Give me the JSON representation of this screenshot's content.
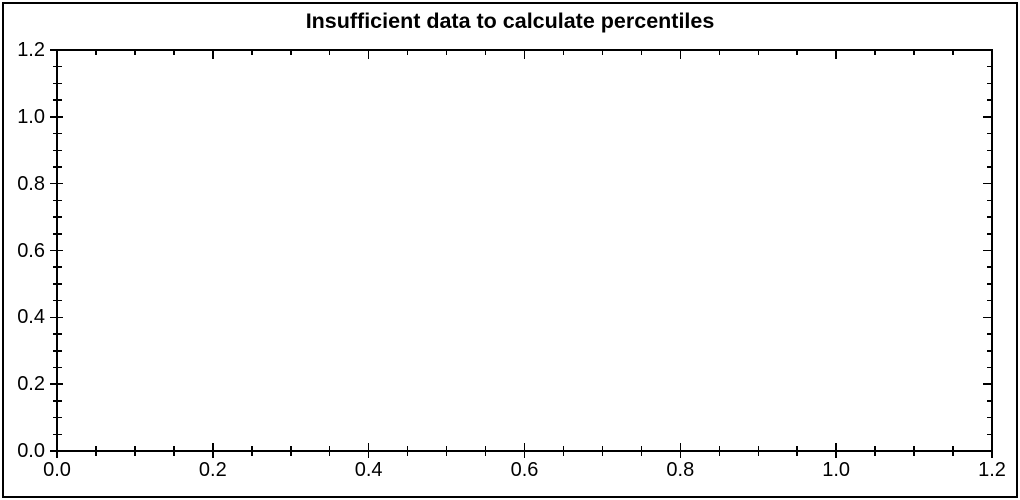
{
  "chart_data": {
    "type": "scatter",
    "title": "Insufficient data to calculate percentiles",
    "series": [],
    "note": "empty plot area - no data points rendered",
    "x_axis": {
      "label": "",
      "min": 0.0,
      "max": 1.2,
      "major_ticks": [
        {
          "value": 0.0,
          "label": "0.0"
        },
        {
          "value": 0.2,
          "label": "0.2"
        },
        {
          "value": 0.4,
          "label": "0.4"
        },
        {
          "value": 0.6,
          "label": "0.6"
        },
        {
          "value": 0.8,
          "label": "0.8"
        },
        {
          "value": 1.0,
          "label": "1.0"
        },
        {
          "value": 1.2,
          "label": "1.2"
        }
      ],
      "minor_step": 0.05,
      "mirrored_on_top": true
    },
    "y_axis": {
      "label": "",
      "min": 0.0,
      "max": 1.2,
      "major_ticks": [
        {
          "value": 0.0,
          "label": "0.0"
        },
        {
          "value": 0.2,
          "label": "0.2"
        },
        {
          "value": 0.4,
          "label": "0.4"
        },
        {
          "value": 0.6,
          "label": "0.6"
        },
        {
          "value": 0.8,
          "label": "0.8"
        },
        {
          "value": 1.0,
          "label": "1.0"
        },
        {
          "value": 1.2,
          "label": "1.2"
        }
      ],
      "minor_step": 0.05,
      "mirrored_on_right": true
    },
    "grid": false,
    "legend": false,
    "colors": {
      "background": "#ffffff",
      "frame": "#000000",
      "axis": "#000000",
      "text": "#000000"
    }
  }
}
